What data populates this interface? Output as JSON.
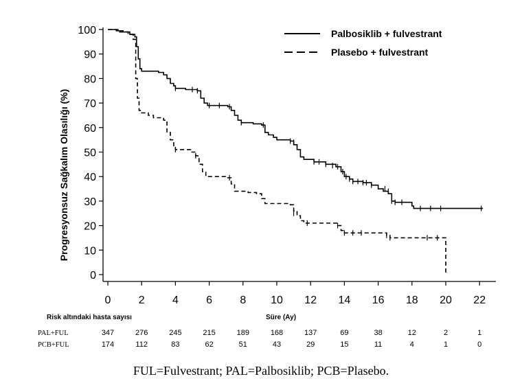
{
  "chart_data": {
    "type": "line",
    "ylabel": "Progresyonsuz Sağkalım Olasılığı (%)",
    "xlabel": "Süre (Ay)",
    "ylim": [
      0,
      100
    ],
    "xlim": [
      0,
      22
    ],
    "yticks": [
      "0",
      "10",
      "20",
      "30",
      "40",
      "50",
      "60",
      "70",
      "80",
      "90",
      "100"
    ],
    "xticks": [
      "0",
      "2",
      "4",
      "6",
      "8",
      "10",
      "12",
      "14",
      "16",
      "18",
      "20",
      "22"
    ],
    "legend_position": "top-right",
    "series": [
      {
        "name": "Palbosiklib + fulvestrant",
        "style": "solid",
        "color": "#000000",
        "steps": [
          [
            0,
            100
          ],
          [
            0.5,
            99.5
          ],
          [
            0.9,
            99
          ],
          [
            1.3,
            98
          ],
          [
            1.6,
            97
          ],
          [
            1.7,
            93
          ],
          [
            1.8,
            88
          ],
          [
            1.9,
            84
          ],
          [
            2.0,
            83
          ],
          [
            3.0,
            82.5
          ],
          [
            3.3,
            81.5
          ],
          [
            3.5,
            80
          ],
          [
            3.7,
            78
          ],
          [
            3.9,
            77
          ],
          [
            4.0,
            76
          ],
          [
            4.6,
            75.5
          ],
          [
            5.3,
            75
          ],
          [
            5.5,
            72
          ],
          [
            5.7,
            70
          ],
          [
            5.9,
            69
          ],
          [
            7.1,
            68.5
          ],
          [
            7.3,
            67
          ],
          [
            7.5,
            65
          ],
          [
            7.7,
            63
          ],
          [
            7.9,
            62
          ],
          [
            8.6,
            61.5
          ],
          [
            9.1,
            61
          ],
          [
            9.3,
            58
          ],
          [
            9.5,
            57
          ],
          [
            9.8,
            56
          ],
          [
            10.0,
            55
          ],
          [
            10.8,
            54.5
          ],
          [
            11.0,
            53
          ],
          [
            11.2,
            51
          ],
          [
            11.4,
            48
          ],
          [
            11.6,
            47
          ],
          [
            12.2,
            46
          ],
          [
            12.9,
            45
          ],
          [
            13.5,
            44
          ],
          [
            13.8,
            42
          ],
          [
            14.0,
            40
          ],
          [
            14.3,
            39
          ],
          [
            14.5,
            38
          ],
          [
            15.1,
            37.5
          ],
          [
            15.6,
            36.5
          ],
          [
            16.0,
            35
          ],
          [
            16.3,
            34
          ],
          [
            16.6,
            33
          ],
          [
            16.8,
            30
          ],
          [
            17.0,
            29.5
          ],
          [
            18.0,
            28
          ],
          [
            18.1,
            27
          ],
          [
            22.2,
            27
          ]
        ],
        "censors": [
          [
            4.0,
            76
          ],
          [
            5.0,
            75.5
          ],
          [
            5.3,
            75
          ],
          [
            6.0,
            69
          ],
          [
            6.6,
            69
          ],
          [
            7.2,
            68.5
          ],
          [
            7.9,
            62
          ],
          [
            9.2,
            61
          ],
          [
            10.8,
            54.5
          ],
          [
            11.0,
            54
          ],
          [
            11.2,
            52
          ],
          [
            12.2,
            46
          ],
          [
            12.5,
            46
          ],
          [
            12.9,
            45
          ],
          [
            13.3,
            44.5
          ],
          [
            13.6,
            44
          ],
          [
            13.9,
            42
          ],
          [
            14.1,
            40
          ],
          [
            14.3,
            39
          ],
          [
            14.5,
            38
          ],
          [
            14.8,
            38
          ],
          [
            15.1,
            37.5
          ],
          [
            15.3,
            37.5
          ],
          [
            15.6,
            36.5
          ],
          [
            16.4,
            35
          ],
          [
            16.6,
            34
          ],
          [
            16.8,
            30
          ],
          [
            17.0,
            29.5
          ],
          [
            17.4,
            29.5
          ],
          [
            18.5,
            27
          ],
          [
            19.1,
            27
          ],
          [
            19.7,
            27
          ],
          [
            22.1,
            27
          ]
        ],
        "at_risk": [
          347,
          276,
          245,
          215,
          189,
          168,
          137,
          69,
          38,
          12,
          2,
          1
        ]
      },
      {
        "name": "Plasebo + fulvestrant",
        "style": "dashed",
        "color": "#000000",
        "steps": [
          [
            0,
            100
          ],
          [
            0.6,
            99
          ],
          [
            1.2,
            98
          ],
          [
            1.5,
            96
          ],
          [
            1.65,
            80
          ],
          [
            1.75,
            72
          ],
          [
            1.85,
            67
          ],
          [
            2.0,
            66
          ],
          [
            2.4,
            65
          ],
          [
            2.7,
            64
          ],
          [
            3.3,
            63
          ],
          [
            3.5,
            58
          ],
          [
            3.7,
            55
          ],
          [
            3.9,
            52
          ],
          [
            4.0,
            51
          ],
          [
            4.9,
            50
          ],
          [
            5.2,
            48.5
          ],
          [
            5.4,
            45
          ],
          [
            5.6,
            42
          ],
          [
            5.8,
            40
          ],
          [
            7.1,
            39.5
          ],
          [
            7.3,
            37
          ],
          [
            7.5,
            34
          ],
          [
            8.3,
            33.5
          ],
          [
            8.8,
            33
          ],
          [
            9.1,
            31
          ],
          [
            9.3,
            29
          ],
          [
            10.8,
            28.5
          ],
          [
            11.0,
            26
          ],
          [
            11.2,
            24
          ],
          [
            11.4,
            22
          ],
          [
            11.6,
            21
          ],
          [
            13.4,
            21
          ],
          [
            13.6,
            20
          ],
          [
            13.8,
            18
          ],
          [
            14.0,
            17
          ],
          [
            16.5,
            16
          ],
          [
            16.7,
            15
          ],
          [
            20.0,
            15
          ],
          [
            20.0,
            0
          ]
        ],
        "censors": [
          [
            4.0,
            51
          ],
          [
            5.2,
            48.5
          ],
          [
            7.2,
            39.5
          ],
          [
            11.0,
            25
          ],
          [
            11.8,
            21
          ],
          [
            13.6,
            20
          ],
          [
            14.0,
            17
          ],
          [
            14.5,
            17
          ],
          [
            15.0,
            17
          ],
          [
            16.5,
            16
          ],
          [
            16.7,
            15
          ],
          [
            18.9,
            15
          ],
          [
            19.5,
            15
          ]
        ],
        "at_risk": [
          174,
          112,
          83,
          62,
          51,
          43,
          29,
          15,
          11,
          4,
          1,
          0
        ]
      }
    ]
  },
  "risk_table": {
    "title": "Risk altındaki hasta sayısı",
    "rows": [
      {
        "label": "PAL+FUL",
        "values": [
          "347",
          "276",
          "245",
          "215",
          "189",
          "168",
          "137",
          "69",
          "38",
          "12",
          "2",
          "1"
        ]
      },
      {
        "label": "PCB+FUL",
        "values": [
          "174",
          "112",
          "83",
          "62",
          "51",
          "43",
          "29",
          "15",
          "11",
          "4",
          "1",
          "0"
        ]
      }
    ]
  },
  "footnote": "FUL=Fulvestrant; PAL=Palbosiklib; PCB=Plasebo."
}
